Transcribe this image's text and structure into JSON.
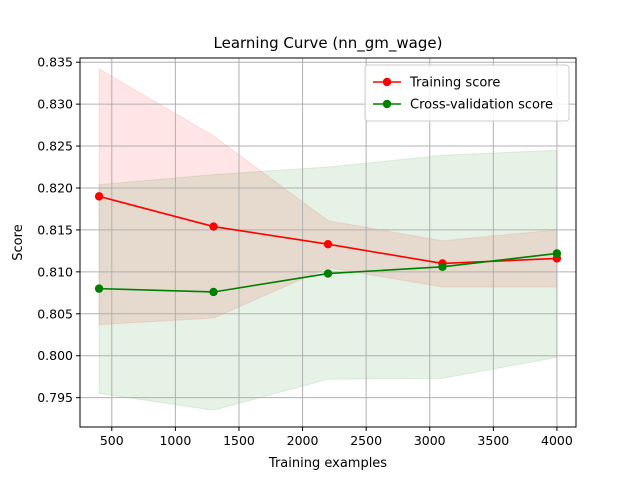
{
  "chart_data": {
    "type": "line",
    "title": "Learning Curve (nn_gm_wage)",
    "xlabel": "Training examples",
    "ylabel": "Score",
    "xlim": [
      250,
      4150
    ],
    "ylim": [
      0.7915,
      0.8355
    ],
    "grid": true,
    "legend_position": "top-right",
    "x_ticks": [
      500,
      1000,
      1500,
      2000,
      2500,
      3000,
      3500,
      4000
    ],
    "x_tick_labels": [
      "500",
      "1000",
      "1500",
      "2000",
      "2500",
      "3000",
      "3500",
      "4000"
    ],
    "y_ticks": [
      0.795,
      0.8,
      0.805,
      0.81,
      0.815,
      0.82,
      0.825,
      0.83,
      0.835
    ],
    "y_tick_labels": [
      "0.795",
      "0.800",
      "0.805",
      "0.810",
      "0.815",
      "0.820",
      "0.825",
      "0.830",
      "0.835"
    ],
    "x": [
      400,
      1300,
      2200,
      3100,
      4000
    ],
    "series": [
      {
        "name": "Training score",
        "color": "#ff0000",
        "band_color": "#ff0000",
        "values": [
          0.819,
          0.8154,
          0.8133,
          0.811,
          0.8116
        ],
        "lower": [
          0.8037,
          0.8045,
          0.8105,
          0.8082,
          0.8082
        ],
        "upper": [
          0.8342,
          0.8262,
          0.8161,
          0.8137,
          0.815
        ]
      },
      {
        "name": "Cross-validation score",
        "color": "#008000",
        "band_color": "#008000",
        "values": [
          0.808,
          0.8076,
          0.8098,
          0.8106,
          0.8122
        ],
        "lower": [
          0.7955,
          0.7935,
          0.7972,
          0.7973,
          0.7998
        ],
        "upper": [
          0.8204,
          0.8216,
          0.8225,
          0.8239,
          0.8245
        ]
      }
    ]
  }
}
